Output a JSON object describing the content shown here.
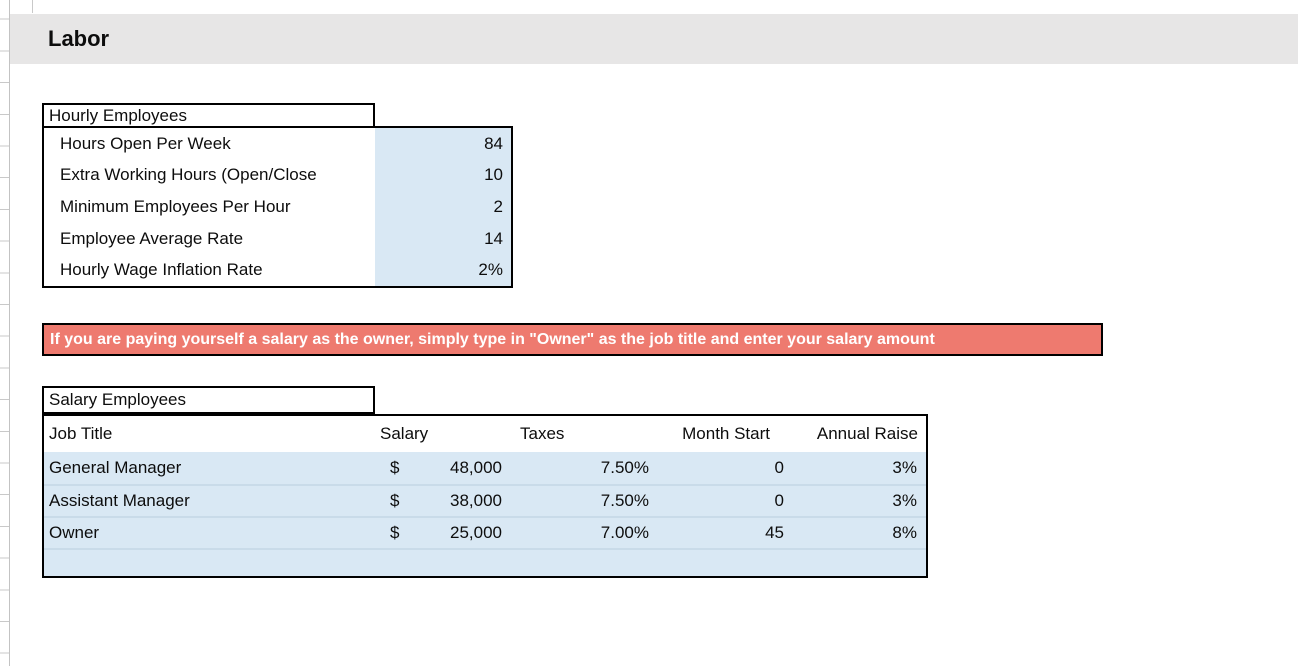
{
  "page": {
    "title": "Labor"
  },
  "hourly": {
    "section_title": "Hourly Employees",
    "rows": [
      {
        "label": "Hours Open Per Week",
        "value": "84"
      },
      {
        "label": "Extra Working Hours (Open/Close",
        "value": "10"
      },
      {
        "label": "Minimum Employees Per Hour",
        "value": "2"
      },
      {
        "label": "Employee Average Rate",
        "value": "14"
      },
      {
        "label": "Hourly Wage Inflation Rate",
        "value": "2%"
      }
    ]
  },
  "owner_note": "If you are paying yourself a salary as the owner, simply type in \"Owner\" as the job title and enter your salary amount",
  "salary": {
    "section_title": "Salary Employees",
    "columns": [
      "Job Title",
      "Salary",
      "Taxes",
      "Month Start",
      "Annual Raise"
    ],
    "currency_symbol": "$",
    "rows": [
      {
        "title": "General Manager",
        "salary": "48,000",
        "taxes": "7.50%",
        "month_start": "0",
        "annual_raise": "3%"
      },
      {
        "title": "Assistant Manager",
        "salary": "38,000",
        "taxes": "7.50%",
        "month_start": "0",
        "annual_raise": "3%"
      },
      {
        "title": "Owner",
        "salary": "25,000",
        "taxes": "7.00%",
        "month_start": "45",
        "annual_raise": "8%"
      }
    ]
  },
  "colors": {
    "input_cell_fill": "#d9e8f4",
    "row_separator": "#c9dbe9",
    "note_fill": "#ee7a6f",
    "section_band_fill": "#e7e6e6",
    "border_black": "#000000",
    "gridline_gray": "#c9c9c9"
  }
}
